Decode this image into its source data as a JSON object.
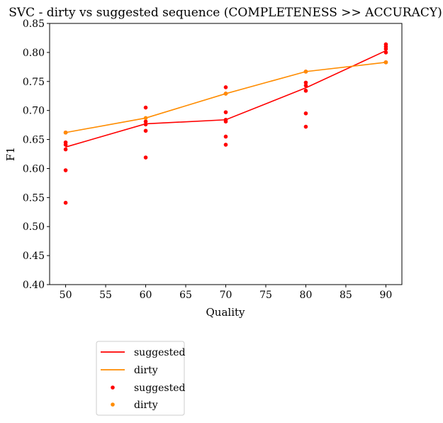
{
  "chart_data": {
    "type": "line",
    "title": "SVC - dirty vs suggested sequence (COMPLETENESS >> ACCURACY)",
    "xlabel": "Quality",
    "ylabel": "F1",
    "xlim": [
      48,
      92
    ],
    "ylim": [
      0.4,
      0.85
    ],
    "xticks": [
      "50",
      "55",
      "60",
      "65",
      "70",
      "75",
      "80",
      "85",
      "90"
    ],
    "yticks": [
      "0.40",
      "0.45",
      "0.50",
      "0.55",
      "0.60",
      "0.65",
      "0.70",
      "0.75",
      "0.80",
      "0.85"
    ],
    "grid": false,
    "legend_position": "below",
    "lines": [
      {
        "name": "suggested",
        "color": "#ff0000",
        "x": [
          50,
          60,
          70,
          80,
          90
        ],
        "y": [
          0.637,
          0.677,
          0.684,
          0.739,
          0.803
        ]
      },
      {
        "name": "dirty",
        "color": "#ff8c00",
        "x": [
          50,
          60,
          70,
          80,
          90
        ],
        "y": [
          0.662,
          0.687,
          0.729,
          0.767,
          0.783
        ]
      }
    ],
    "scatter": [
      {
        "name": "suggested",
        "color": "#ff0000",
        "points": [
          [
            50,
            0.541
          ],
          [
            50,
            0.597
          ],
          [
            50,
            0.633
          ],
          [
            50,
            0.641
          ],
          [
            50,
            0.645
          ],
          [
            50,
            0.662
          ],
          [
            60,
            0.619
          ],
          [
            60,
            0.665
          ],
          [
            60,
            0.676
          ],
          [
            60,
            0.681
          ],
          [
            60,
            0.705
          ],
          [
            70,
            0.641
          ],
          [
            70,
            0.655
          ],
          [
            70,
            0.681
          ],
          [
            70,
            0.684
          ],
          [
            70,
            0.697
          ],
          [
            70,
            0.729
          ],
          [
            70,
            0.74
          ],
          [
            80,
            0.672
          ],
          [
            80,
            0.695
          ],
          [
            80,
            0.734
          ],
          [
            80,
            0.743
          ],
          [
            80,
            0.748
          ],
          [
            80,
            0.767
          ],
          [
            90,
            0.783
          ],
          [
            90,
            0.8
          ],
          [
            90,
            0.806
          ],
          [
            90,
            0.81
          ],
          [
            90,
            0.814
          ]
        ]
      },
      {
        "name": "dirty",
        "color": "#ff8c00",
        "points": [
          [
            50,
            0.662
          ],
          [
            60,
            0.687
          ],
          [
            70,
            0.729
          ],
          [
            80,
            0.767
          ],
          [
            90,
            0.783
          ]
        ]
      }
    ]
  }
}
